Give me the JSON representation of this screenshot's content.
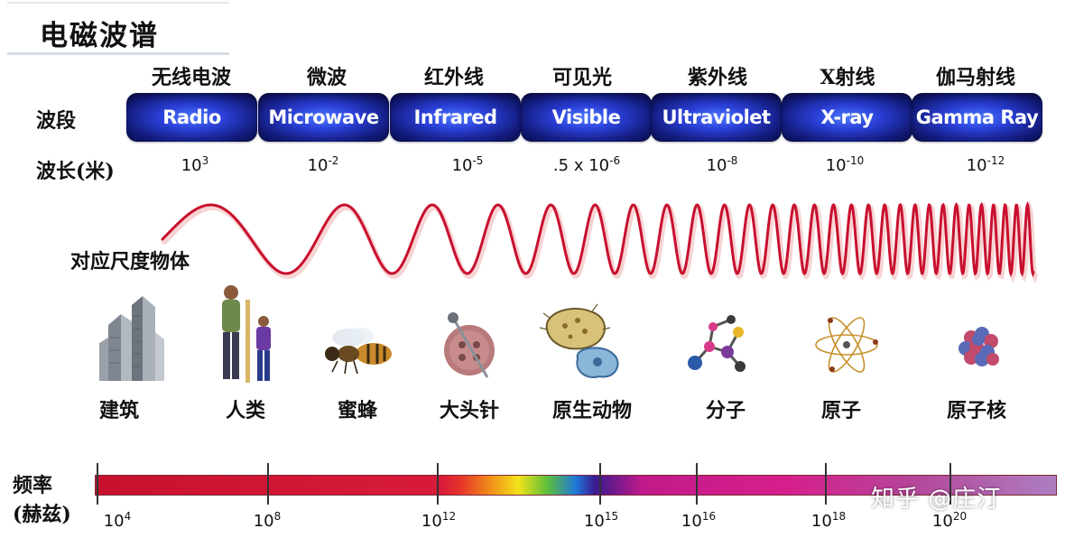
{
  "title": "电磁波谱",
  "row_labels": {
    "band": "波段",
    "wavelength": "波长(米)",
    "scale": "对应尺度物体",
    "freq_line1": "频率",
    "freq_line2": "(赫兹)"
  },
  "bands": [
    {
      "cn": "无线电波",
      "en": "Radio",
      "wl_base": "10",
      "wl_exp": "3"
    },
    {
      "cn": "微波",
      "en": "Microwave",
      "wl_base": "10",
      "wl_exp": "-2"
    },
    {
      "cn": "红外线",
      "en": "Infrared",
      "wl_base": "10",
      "wl_exp": "-5"
    },
    {
      "cn": "可见光",
      "en": "Visible",
      "wl_base": ".5 x 10",
      "wl_exp": "-6"
    },
    {
      "cn": "紫外线",
      "en": "Ultraviolet",
      "wl_base": "10",
      "wl_exp": "-8"
    },
    {
      "cn": "X射线",
      "en": "X-ray",
      "wl_base": "10",
      "wl_exp": "-10"
    },
    {
      "cn": "伽马射线",
      "en": "Gamma Ray",
      "wl_base": "10",
      "wl_exp": "-12"
    }
  ],
  "objects": [
    {
      "label": "建筑",
      "icon": "building-icon"
    },
    {
      "label": "人类",
      "icon": "humans-icon"
    },
    {
      "label": "蜜蜂",
      "icon": "bee-icon"
    },
    {
      "label": "大头针",
      "icon": "pin-icon"
    },
    {
      "label": "原生动物",
      "icon": "protozoa-icon"
    },
    {
      "label": "分子",
      "icon": "molecule-icon"
    },
    {
      "label": "原子",
      "icon": "atom-icon"
    },
    {
      "label": "原子核",
      "icon": "nucleus-icon"
    }
  ],
  "frequency_ticks": [
    {
      "base": "10",
      "exp": "4"
    },
    {
      "base": "10",
      "exp": "8"
    },
    {
      "base": "10",
      "exp": "12"
    },
    {
      "base": "10",
      "exp": "15"
    },
    {
      "base": "10",
      "exp": "16"
    },
    {
      "base": "10",
      "exp": "18"
    },
    {
      "base": "10",
      "exp": "20"
    }
  ],
  "colors": {
    "wave": "#c8102e",
    "pill": "#1a2ab0"
  },
  "watermark": "知乎 @庄汀"
}
